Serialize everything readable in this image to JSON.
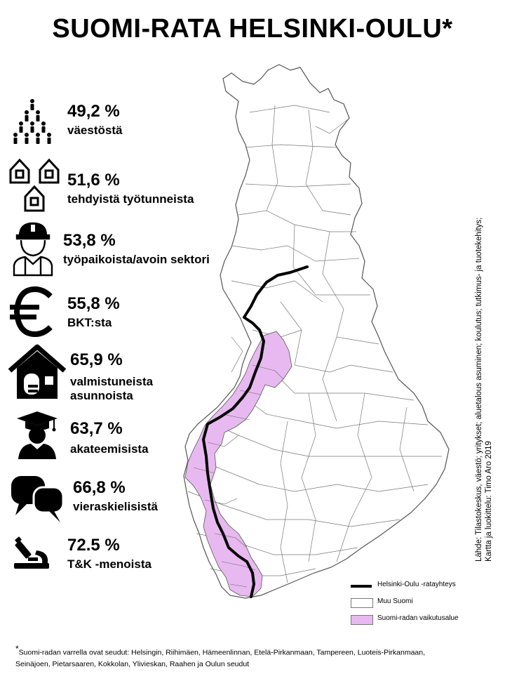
{
  "title": "SUOMI-RATA HELSINKI-OULU*",
  "stats": [
    {
      "value": "49,2 %",
      "label": "väestöstä",
      "icon": "people-icon"
    },
    {
      "value": "51,6 %",
      "label": "tehdyistä työtunneista",
      "icon": "houses-icon"
    },
    {
      "value": "53,8 %",
      "label": "työpaikoista/avoin sektori",
      "icon": "worker-icon"
    },
    {
      "value": "55,8 %",
      "label": "BKT:sta",
      "icon": "euro-icon"
    },
    {
      "value": "65,9 %",
      "label": "valmistuneista asunnoista",
      "icon": "house-icon"
    },
    {
      "value": "63,7 %",
      "label": "akateemisista",
      "icon": "graduate-icon"
    },
    {
      "value": "66,8 %",
      "label": "vieraskielisistä",
      "icon": "speech-bubbles-icon"
    },
    {
      "value": "72.5 %",
      "label": "T&K -menoista",
      "icon": "microscope-icon"
    }
  ],
  "source": {
    "line1": "Lähde: Tilastokeskus, väestö; yritykset; aluetalous asuminen; koulutus; tutkimus- ja tuotekehitys;",
    "line2": "Kartta ja luokittelu: Timo Aro 2019"
  },
  "legend": [
    {
      "label": "Helsinki-Oulu -ratayhteys",
      "color": "#000000"
    },
    {
      "label": "Muu Suomi",
      "color": "#ffffff"
    },
    {
      "label": "Suomi-radan vaikutusalue",
      "color": "#e8b9f0"
    }
  ],
  "footnote": {
    "mark": "*",
    "text": "Suomi-radan varrella ovat seudut: Helsingin, Riihimäen, Hämeenlinnan, Etelä-Pirkanmaan, Tampereen, Luoteis-Pirkanmaan, Seinäjoen, Pietarsaaren, Kokkolan, Ylivieskan, Raahen ja Oulun seudut"
  },
  "colors": {
    "impact_area": "#e8b9f0",
    "other": "#ffffff",
    "border": "#555555",
    "rail": "#000000"
  }
}
